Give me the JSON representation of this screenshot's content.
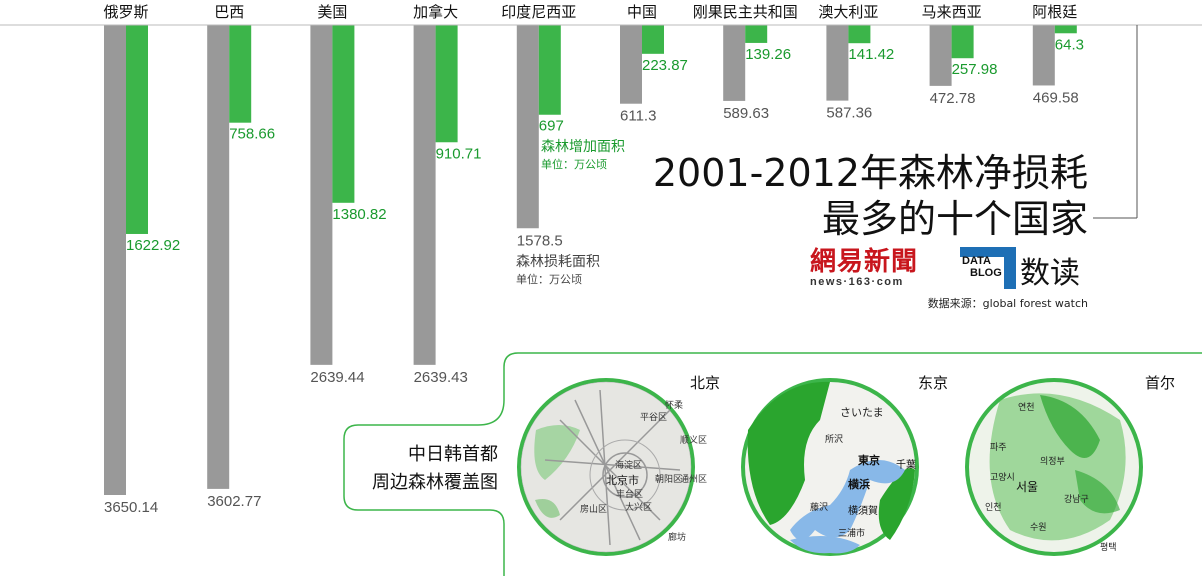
{
  "chart_data": {
    "type": "bar",
    "title": "2001-2012年森林净损耗最多的十个国家",
    "categories": [
      "俄罗斯",
      "巴西",
      "美国",
      "加拿大",
      "印度尼西亚",
      "中国",
      "刚果民主共和国",
      "澳大利亚",
      "马来西亚",
      "阿根廷"
    ],
    "series": [
      {
        "name": "森林损耗面积",
        "unit": "单位：万公顷",
        "color": "#999999",
        "values": [
          3650.14,
          3602.77,
          2639.44,
          2639.43,
          1578.5,
          611.3,
          589.63,
          587.36,
          472.78,
          469.58
        ]
      },
      {
        "name": "森林增加面积",
        "unit": "单位：万公顷",
        "color": "#3cb54a",
        "values": [
          1622.92,
          758.66,
          1380.82,
          910.71,
          697,
          223.87,
          139.26,
          141.42,
          257.98,
          64.3
        ]
      }
    ],
    "value_labels_gray": [
      "3650.14",
      "3602.77",
      "2639.44",
      "2639.43",
      "1578.5",
      "611.3",
      "589.63",
      "587.36",
      "472.78",
      "469.58"
    ],
    "value_labels_green": [
      "1622.92",
      "758.66",
      "1380.82",
      "910.71",
      "697",
      "223.87",
      "139.26",
      "141.42",
      "257.98",
      "64.3"
    ]
  },
  "title_line1": "2001-2012年森林净损耗",
  "title_line2": "最多的十个国家",
  "legend": {
    "green_name": "森林增加面积",
    "green_unit": "单位：万公顷",
    "gray_name": "森林损耗面积",
    "gray_unit": "单位：万公顷"
  },
  "brand": {
    "netease": "網易新聞",
    "netease_url": "news·163·com",
    "datablog_1": "DATA",
    "datablog_2": "BLOG",
    "shudu": "数读"
  },
  "source": "数据来源：global forest watch",
  "map_panel": {
    "title_line1": "中日韩首都",
    "title_line2": "周边森林覆盖图",
    "maps": [
      {
        "label": "北京",
        "places": [
          "怀柔",
          "平谷区",
          "顺义区",
          "海淀区",
          "北京市",
          "朝阳区",
          "丰台区",
          "大兴区",
          "房山区",
          "通州区",
          "廊坊"
        ]
      },
      {
        "label": "东京",
        "places": [
          "さいたま",
          "所沢",
          "東京",
          "横浜",
          "藤沢",
          "横須賀",
          "千葉",
          "三浦市"
        ]
      },
      {
        "label": "首尔",
        "places": [
          "연천",
          "파주",
          "의정부",
          "서울",
          "수원",
          "인천",
          "고양시",
          "강남구",
          "평택"
        ]
      }
    ]
  },
  "colors": {
    "gray": "#999999",
    "green": "#3cb54a",
    "green_text": "#1a9a2e",
    "frame": "#3cb54a"
  }
}
